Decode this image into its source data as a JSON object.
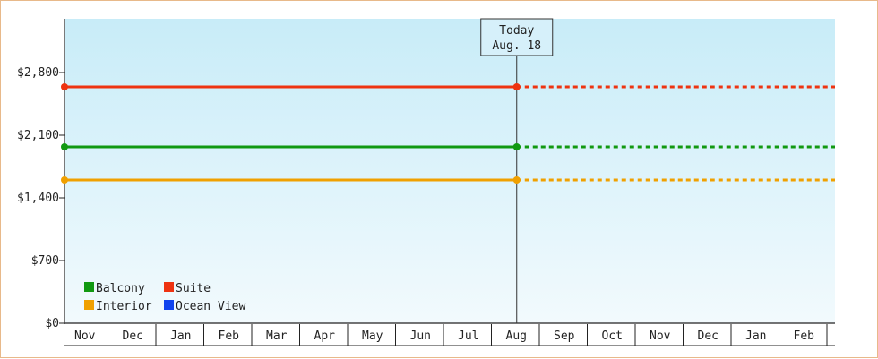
{
  "chart_data": {
    "type": "line",
    "x_months": [
      "Nov",
      "Dec",
      "Jan",
      "Feb",
      "Mar",
      "Apr",
      "May",
      "Jun",
      "Jul",
      "Aug",
      "Sep",
      "Oct",
      "Nov",
      "Dec",
      "Jan",
      "Feb"
    ],
    "today_label": "Today",
    "today_date": "Aug. 18",
    "today_index": 9,
    "y_ticks": [
      "$0",
      "$700",
      "$1,400",
      "$2,100",
      "$2,800"
    ],
    "ylim": [
      0,
      3400
    ],
    "grid": false,
    "legend_position": "bottom-left",
    "series": [
      {
        "name": "Balcony",
        "color": "#119911",
        "values": [
          1970,
          1970
        ]
      },
      {
        "name": "Suite",
        "color": "#ee3311",
        "values": [
          2640,
          2640
        ]
      },
      {
        "name": "Interior",
        "color": "#f0a000",
        "values": [
          1600,
          1600
        ]
      },
      {
        "name": "Ocean View",
        "color": "#1144ee",
        "values": []
      }
    ],
    "background_top": "#c8ecf8",
    "background_bottom": "#f2fafd"
  }
}
